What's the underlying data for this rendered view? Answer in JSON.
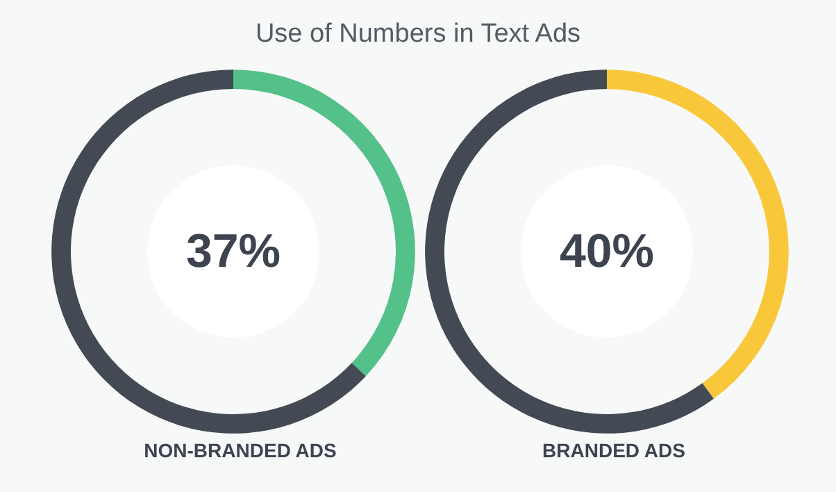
{
  "chart_data": [
    {
      "type": "donut",
      "title": "Use of Numbers in Text Ads",
      "xlabel": "NON-BRANDED ADS",
      "categories": [
        null,
        null
      ],
      "values": [
        37,
        63
      ],
      "colors": [
        "#54c08a",
        "#434a54"
      ],
      "value_labels": [
        "37%",
        null
      ]
    },
    {
      "type": "donut",
      "xlabel": "BRANDED ADS",
      "categories": [
        null,
        null
      ],
      "values": [
        40,
        60
      ],
      "colors": [
        "#f9c73a",
        "#434a54"
      ],
      "value_labels": [
        "40%",
        null
      ]
    }
  ]
}
